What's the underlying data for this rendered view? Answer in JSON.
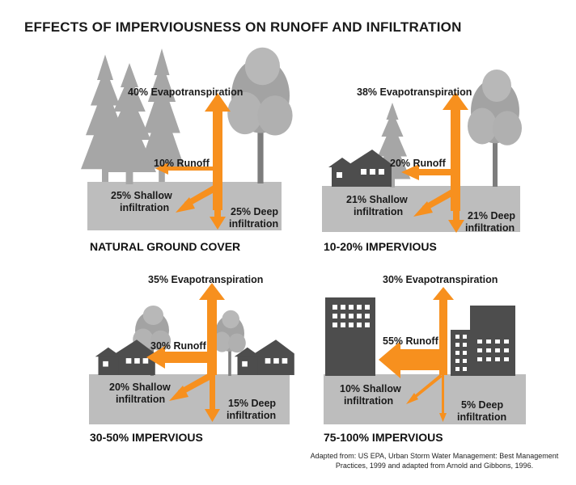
{
  "title": "EFFECTS OF IMPERVIOUSNESS ON RUNOFF AND INFILTRATION",
  "credit": "Adapted from: US EPA, Urban Storm Water Management: Best Management Practices, 1999 and adapted from Arnold and Gibbons, 1996.",
  "colors": {
    "arrow": "#f7901e",
    "ground": "#bdbdbd",
    "building": "#4d4d4d",
    "tree": "#a9a9a9"
  },
  "panels": [
    {
      "caption": "NATURAL GROUND COVER",
      "evapotranspiration": "40% Evapotranspiration",
      "runoff": "10% Runoff",
      "shallow_1": "25% Shallow",
      "shallow_2": "infiltration",
      "deep_1": "25% Deep",
      "deep_2": "infiltration"
    },
    {
      "caption": "10-20% IMPERVIOUS",
      "evapotranspiration": "38% Evapotranspiration",
      "runoff": "20% Runoff",
      "shallow_1": "21% Shallow",
      "shallow_2": "infiltration",
      "deep_1": "21% Deep",
      "deep_2": "infiltration"
    },
    {
      "caption": "30-50% IMPERVIOUS",
      "evapotranspiration": "35% Evapotranspiration",
      "runoff": "30% Runoff",
      "shallow_1": "20% Shallow",
      "shallow_2": "infiltration",
      "deep_1": "15% Deep",
      "deep_2": "infiltration"
    },
    {
      "caption": "75-100% IMPERVIOUS",
      "evapotranspiration": "30% Evapotranspiration",
      "runoff": "55% Runoff",
      "shallow_1": "10% Shallow",
      "shallow_2": "infiltration",
      "deep_1": "5% Deep",
      "deep_2": "infiltration"
    }
  ]
}
